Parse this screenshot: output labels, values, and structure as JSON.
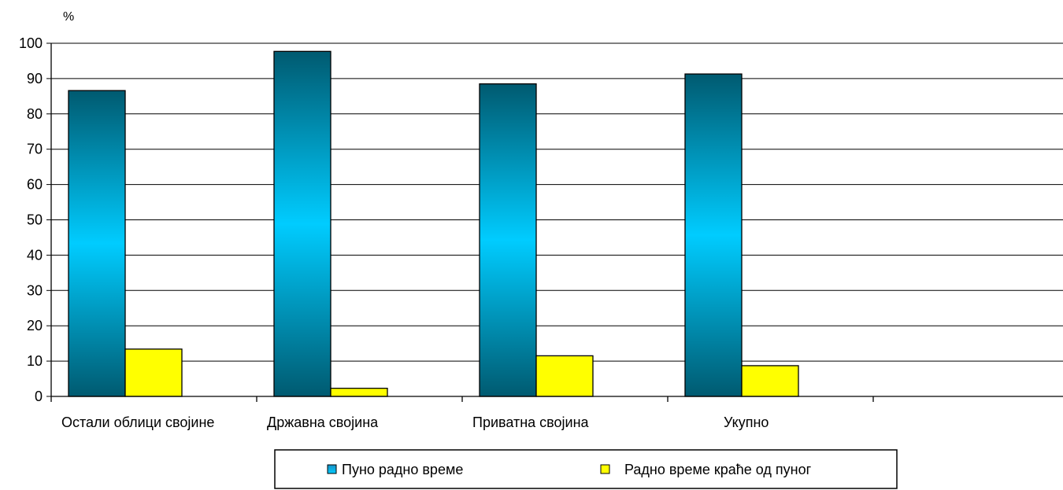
{
  "chart_data": {
    "type": "bar",
    "ylabel": "%",
    "categories": [
      "Остали облици својине",
      "Државна својина",
      "Приватна својина",
      "Укупно"
    ],
    "series": [
      {
        "name": "Пуно радно време",
        "values": [
          86.6,
          97.7,
          88.5,
          91.3
        ],
        "color": "#00ccff"
      },
      {
        "name": "Радно време краће од пуног",
        "values": [
          13.4,
          2.3,
          11.5,
          8.7
        ],
        "color": "#ffff00"
      }
    ],
    "ylim": [
      0,
      100
    ],
    "yticks": [
      0,
      10,
      20,
      30,
      40,
      50,
      60,
      70,
      80,
      90,
      100
    ],
    "grid": true,
    "legend_position": "bottom"
  }
}
